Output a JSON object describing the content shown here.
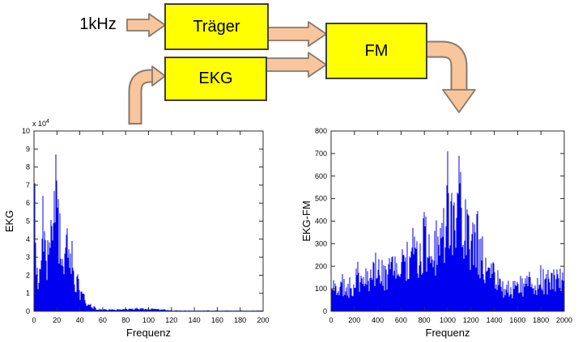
{
  "diagram": {
    "input_label": "1kHz",
    "blocks": [
      {
        "label": "Träger"
      },
      {
        "label": "EKG"
      },
      {
        "label": "FM"
      }
    ],
    "colors": {
      "block_fill": "#FFFF00",
      "block_border": "#3E3E3E",
      "arrow_fill": "#F9C59A",
      "arrow_outline": "#847A6F"
    }
  },
  "chart_data": [
    {
      "type": "area",
      "title": "",
      "xlabel": "Frequenz",
      "ylabel": "EKG",
      "y_exponent": {
        "base": "x 10",
        "sup": "4"
      },
      "xlim": [
        0,
        200
      ],
      "ylim": [
        0,
        10
      ],
      "xticks": [
        0,
        20,
        40,
        60,
        80,
        100,
        120,
        140,
        160,
        180,
        200
      ],
      "yticks": [
        0,
        1,
        2,
        3,
        4,
        5,
        6,
        7,
        8,
        9,
        10
      ],
      "grid": false,
      "box": true,
      "legend": "none",
      "line_color": "#0000F0",
      "axis_color": "#2B2B2B",
      "envelope_units": "y values in 10^4",
      "envelope": [
        [
          0,
          0.4
        ],
        [
          1,
          7.1
        ],
        [
          2,
          4.5
        ],
        [
          4,
          2.4
        ],
        [
          6,
          3.3
        ],
        [
          8,
          6.4
        ],
        [
          10,
          5.2
        ],
        [
          12,
          4.2
        ],
        [
          14,
          5.1
        ],
        [
          16,
          6.0
        ],
        [
          18,
          8.5
        ],
        [
          19,
          8.7
        ],
        [
          21,
          7.3
        ],
        [
          23,
          5.4
        ],
        [
          25,
          4.2
        ],
        [
          27,
          4.5
        ],
        [
          29,
          4.6
        ],
        [
          31,
          3.5
        ],
        [
          33,
          3.9
        ],
        [
          35,
          3.0
        ],
        [
          37,
          2.4
        ],
        [
          40,
          1.7
        ],
        [
          43,
          1.1
        ],
        [
          46,
          0.7
        ],
        [
          50,
          0.4
        ],
        [
          55,
          0.18
        ],
        [
          60,
          0.13
        ],
        [
          70,
          0.13
        ],
        [
          80,
          0.16
        ],
        [
          90,
          0.2
        ],
        [
          100,
          0.17
        ],
        [
          108,
          0.15
        ],
        [
          115,
          0.12
        ],
        [
          122,
          0.06
        ],
        [
          130,
          0.05
        ],
        [
          200,
          0.05
        ]
      ]
    },
    {
      "type": "area",
      "title": "",
      "xlabel": "Frequenz",
      "ylabel": "EKG-FM",
      "xlim": [
        0,
        2000
      ],
      "ylim": [
        0,
        800
      ],
      "xticks": [
        0,
        200,
        400,
        600,
        800,
        1000,
        1200,
        1400,
        1600,
        1800,
        2000
      ],
      "yticks": [
        0,
        100,
        200,
        300,
        400,
        500,
        600,
        700,
        800
      ],
      "grid": false,
      "box": true,
      "legend": "none",
      "line_color": "#0000F0",
      "axis_color": "#2B2B2B",
      "envelope": [
        [
          0,
          140
        ],
        [
          50,
          155
        ],
        [
          100,
          165
        ],
        [
          150,
          150
        ],
        [
          200,
          170
        ],
        [
          230,
          220
        ],
        [
          260,
          165
        ],
        [
          300,
          195
        ],
        [
          350,
          215
        ],
        [
          385,
          260
        ],
        [
          420,
          250
        ],
        [
          450,
          235
        ],
        [
          500,
          265
        ],
        [
          550,
          275
        ],
        [
          600,
          305
        ],
        [
          650,
          315
        ],
        [
          700,
          370
        ],
        [
          730,
          330
        ],
        [
          760,
          325
        ],
        [
          800,
          440
        ],
        [
          840,
          405
        ],
        [
          870,
          355
        ],
        [
          900,
          415
        ],
        [
          950,
          435
        ],
        [
          980,
          490
        ],
        [
          1000,
          710
        ],
        [
          1015,
          685
        ],
        [
          1035,
          600
        ],
        [
          1055,
          485
        ],
        [
          1075,
          525
        ],
        [
          1095,
          690
        ],
        [
          1115,
          645
        ],
        [
          1135,
          545
        ],
        [
          1160,
          515
        ],
        [
          1185,
          495
        ],
        [
          1210,
          455
        ],
        [
          1235,
          425
        ],
        [
          1255,
          445
        ],
        [
          1280,
          375
        ],
        [
          1305,
          325
        ],
        [
          1330,
          305
        ],
        [
          1355,
          265
        ],
        [
          1380,
          235
        ],
        [
          1405,
          215
        ],
        [
          1430,
          185
        ],
        [
          1455,
          165
        ],
        [
          1480,
          145
        ],
        [
          1505,
          135
        ],
        [
          1550,
          150
        ],
        [
          1600,
          155
        ],
        [
          1650,
          165
        ],
        [
          1700,
          175
        ],
        [
          1750,
          165
        ],
        [
          1800,
          205
        ],
        [
          1850,
          185
        ],
        [
          1900,
          185
        ],
        [
          1950,
          205
        ],
        [
          2000,
          230
        ]
      ]
    }
  ]
}
